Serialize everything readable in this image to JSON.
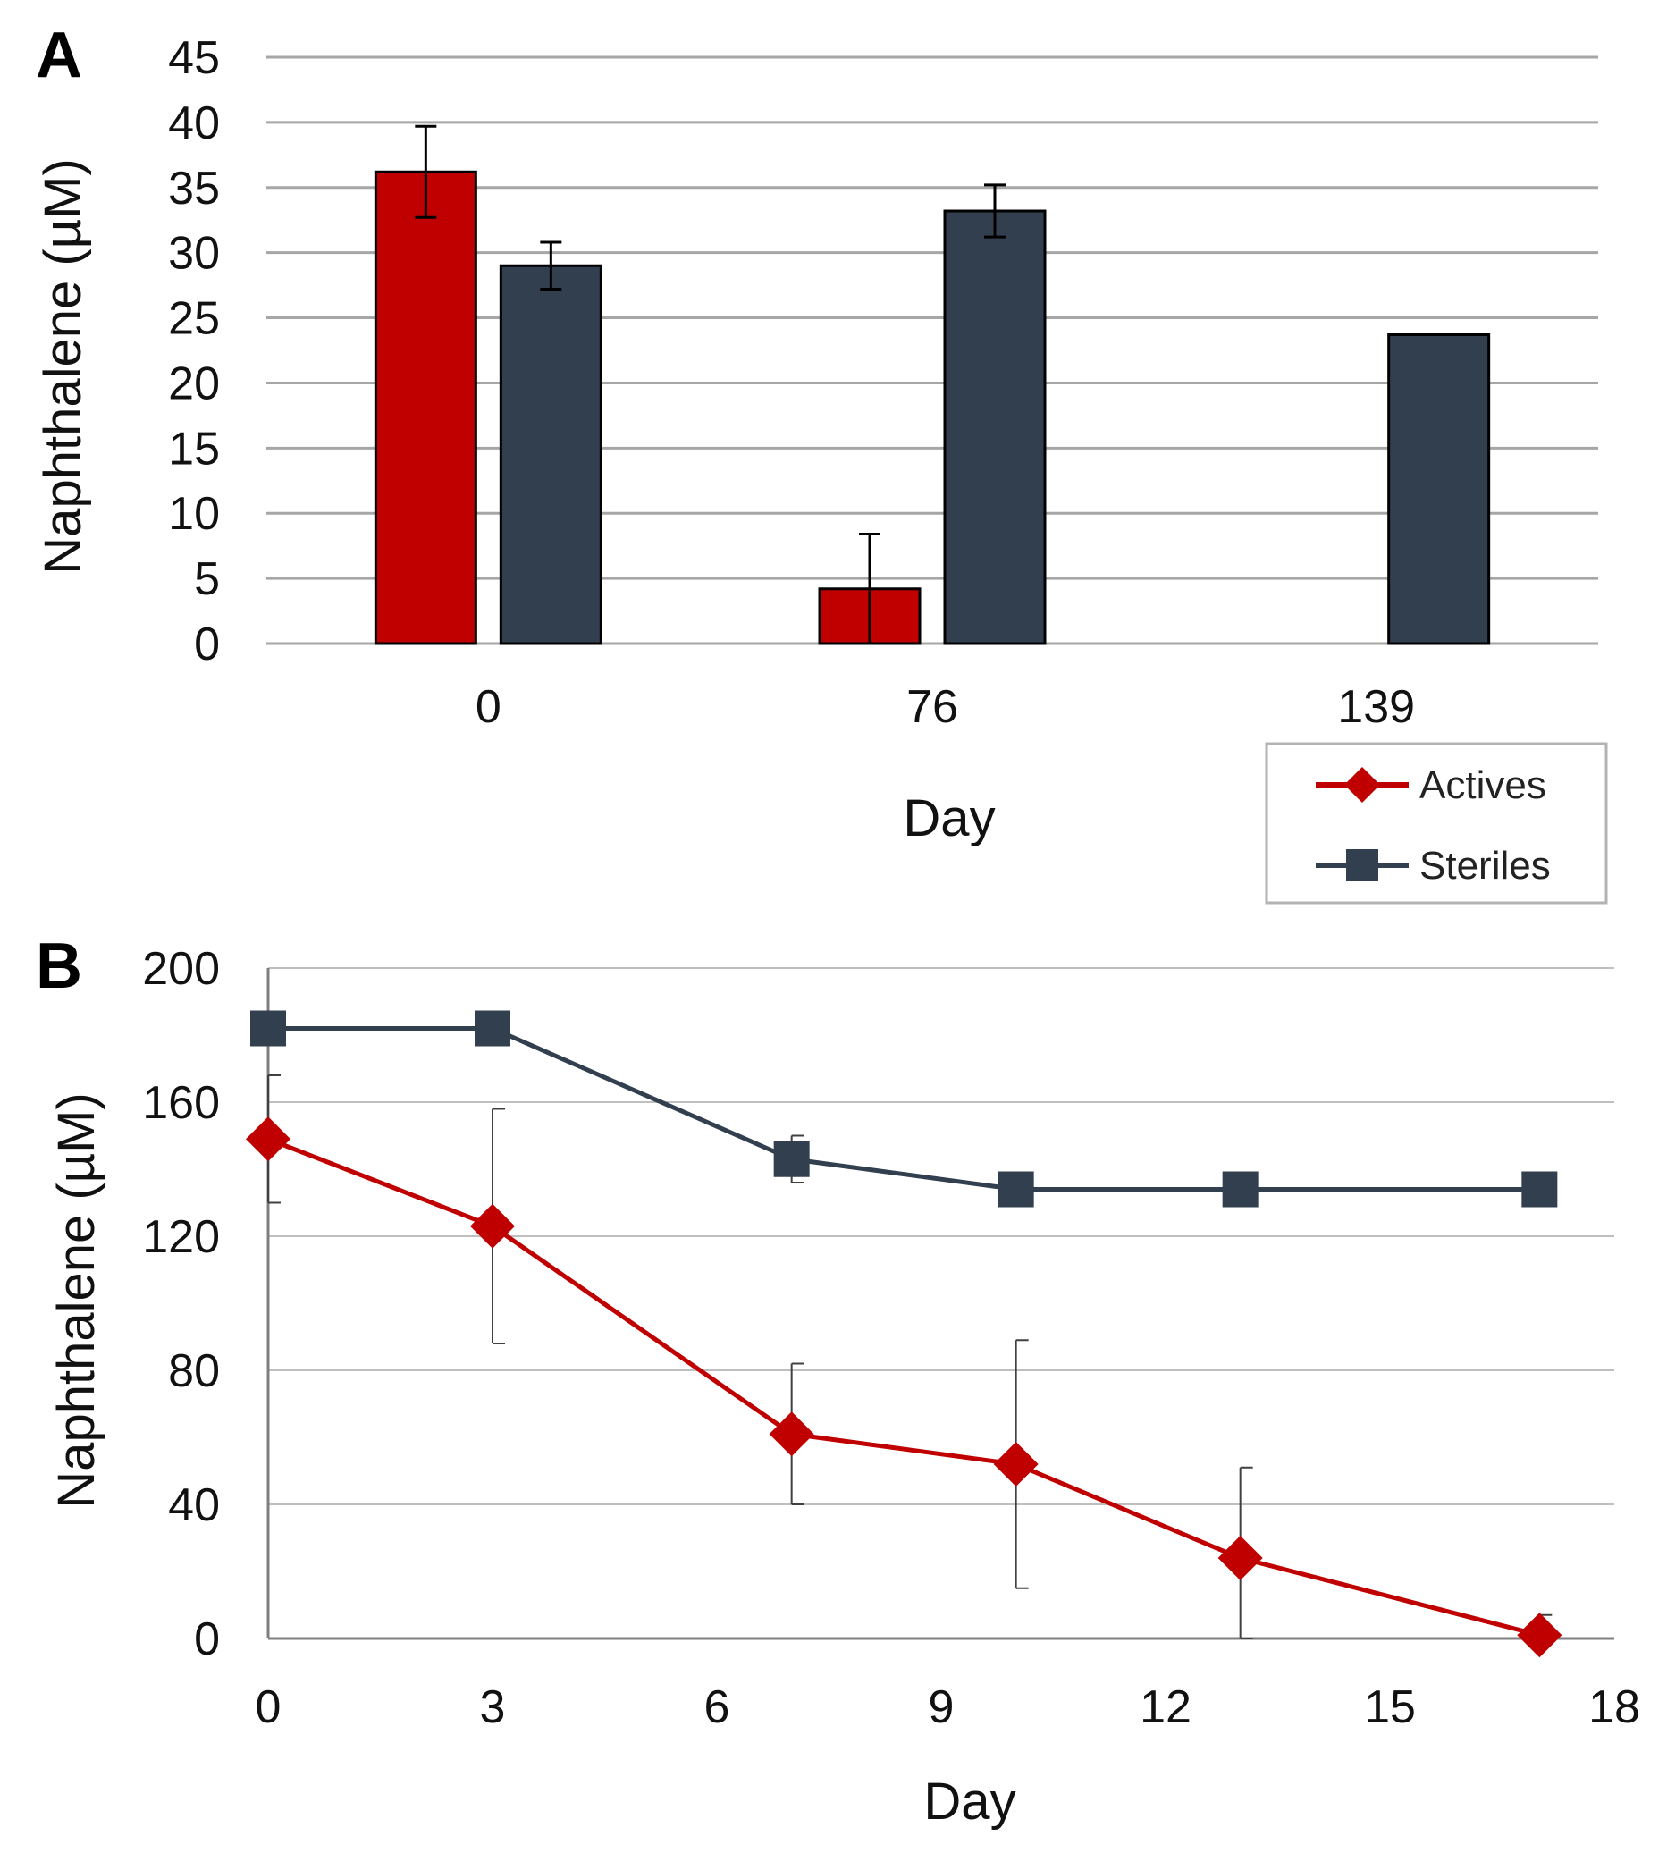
{
  "chart_data": [
    {
      "panel": "A",
      "type": "bar",
      "xlabel": "Day",
      "ylabel": "Naphthalene (µM)",
      "categories": [
        "0",
        "76",
        "139"
      ],
      "ylim": [
        0,
        45
      ],
      "yticks": [
        "0",
        "5",
        "10",
        "15",
        "20",
        "25",
        "30",
        "35",
        "40",
        "45"
      ],
      "yticks_values": [
        0,
        5,
        10,
        15,
        20,
        25,
        30,
        35,
        40,
        45
      ],
      "grid": true,
      "series": [
        {
          "name": "Actives",
          "color": "#c00000",
          "values": [
            36.2,
            4.2,
            null
          ],
          "errors": [
            3.5,
            4.2,
            null
          ]
        },
        {
          "name": "Steriles",
          "color": "#323f4f",
          "values": [
            29.0,
            33.2,
            23.7
          ],
          "errors": [
            1.8,
            2.0,
            null
          ]
        }
      ],
      "legend": {
        "position": "bottom-right",
        "entries": [
          {
            "label": "Actives",
            "color": "#c00000",
            "marker": "diamond"
          },
          {
            "label": "Steriles",
            "color": "#323f4f",
            "marker": "square"
          }
        ]
      }
    },
    {
      "panel": "B",
      "type": "line",
      "xlabel": "Day",
      "ylabel": "Naphthalene (µM)",
      "xlim": [
        0,
        18
      ],
      "ylim": [
        0,
        200
      ],
      "xticks": [
        "0",
        "3",
        "6",
        "9",
        "12",
        "15",
        "18"
      ],
      "xticks_values": [
        0,
        3,
        6,
        9,
        12,
        15,
        18
      ],
      "yticks": [
        "0",
        "40",
        "80",
        "120",
        "160",
        "200"
      ],
      "yticks_values": [
        0,
        40,
        80,
        120,
        160,
        200
      ],
      "grid": true,
      "series": [
        {
          "name": "Steriles",
          "color": "#323f4f",
          "marker": "square",
          "x": [
            0,
            3,
            7,
            10,
            13,
            17
          ],
          "y": [
            182,
            182,
            143,
            134,
            134,
            134
          ],
          "errors": [
            0,
            0,
            7,
            0,
            0,
            0
          ]
        },
        {
          "name": "Actives",
          "color": "#c00000",
          "marker": "diamond",
          "x": [
            0,
            3,
            7,
            10,
            13,
            17
          ],
          "y": [
            149,
            123,
            61,
            52,
            24,
            1
          ],
          "errors": [
            19,
            35,
            21,
            37,
            27,
            6
          ]
        }
      ]
    }
  ]
}
